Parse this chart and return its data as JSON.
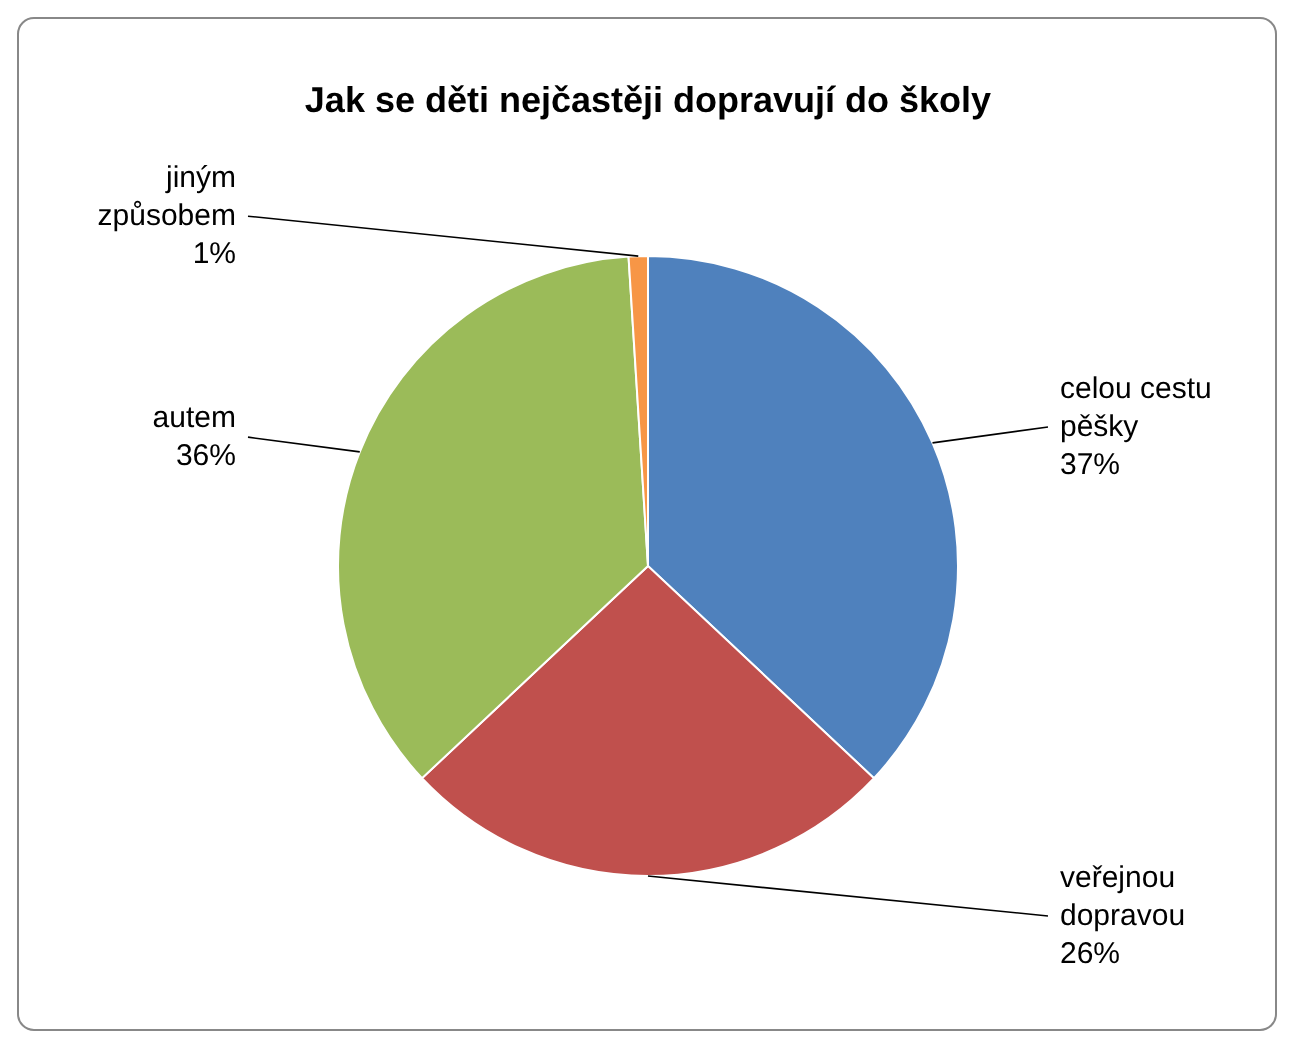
{
  "chart_data": {
    "type": "pie",
    "title": "Jak se děti nejčastěji dopravují do školy",
    "categories": [
      "celou cestu pěšky",
      "veřejnou dopravou",
      "autem",
      "jiným způsobem"
    ],
    "values": [
      37,
      26,
      36,
      1
    ],
    "value_labels": [
      "37%",
      "26%",
      "36%",
      "1%"
    ],
    "colors": [
      "#4f81bd",
      "#c0504d",
      "#9bbb59",
      "#f79646"
    ]
  }
}
